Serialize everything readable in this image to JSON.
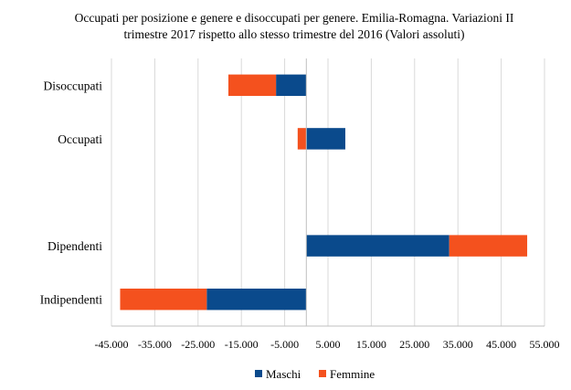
{
  "chart_data": {
    "type": "bar",
    "orientation": "horizontal",
    "stacked": true,
    "title": "Occupati per posizione e genere e disoccupati per genere. Emilia-Romagna.  Variazioni  II trimestre 2017 rispetto allo stesso trimestre del 2016 (Valori assoluti)",
    "title_lines": [
      "Occupati per posizione e  genere e  disoccupati per genere. Emilia-Romagna.   Variazioni   II",
      "trimestre 2017  rispetto allo stesso trimestre del 2016  (Valori  assoluti)"
    ],
    "categories": [
      "Disoccupati",
      "Occupati",
      "",
      "Dipendenti",
      "Indipendenti"
    ],
    "series": [
      {
        "name": "Maschi",
        "color": "#0A4A8C",
        "values": [
          -7000,
          9000,
          null,
          33000,
          -23000
        ]
      },
      {
        "name": "Femmine",
        "color": "#F4511E",
        "values": [
          -11000,
          -2000,
          null,
          18000,
          -20000
        ]
      }
    ],
    "xlim": [
      -45000,
      55000
    ],
    "x_ticks": [
      -45000,
      -35000,
      -25000,
      -15000,
      -5000,
      5000,
      15000,
      25000,
      35000,
      45000,
      55000
    ],
    "x_tick_labels": [
      "-45.000",
      "-35.000",
      "-25.000",
      "-15.000",
      "-5.000",
      "5.000",
      "15.000",
      "25.000",
      "35.000",
      "45.000",
      "55.000"
    ],
    "xlabel": "",
    "ylabel": "",
    "grid": "vertical",
    "legend_position": "bottom"
  }
}
